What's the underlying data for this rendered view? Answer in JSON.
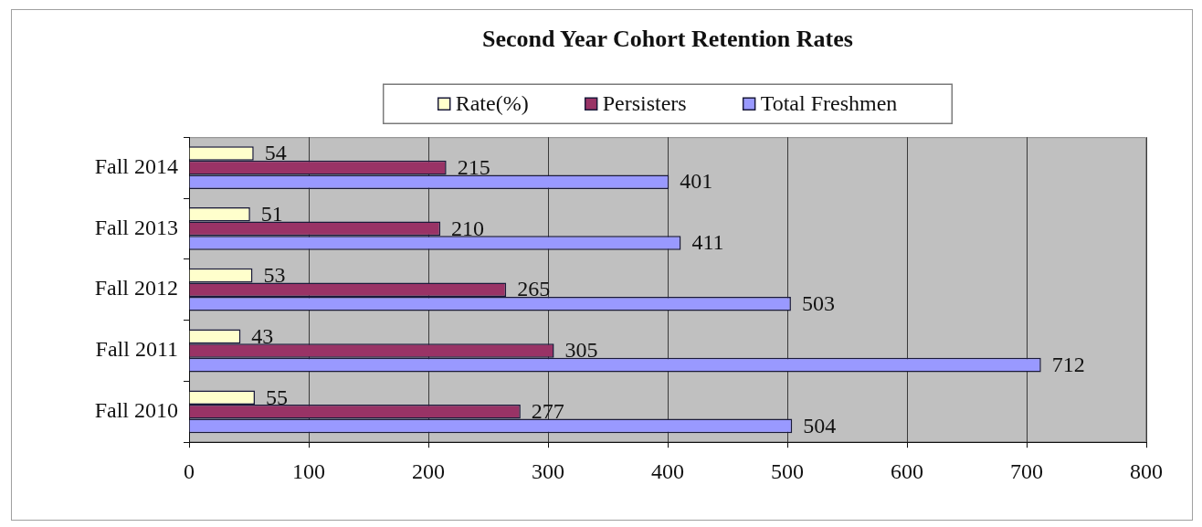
{
  "chart_data": {
    "type": "bar",
    "orientation": "horizontal",
    "title": "Second Year Cohort Retention Rates",
    "categories": [
      "Fall 2014",
      "Fall 2013",
      "Fall 2012",
      "Fall 2011",
      "Fall 2010"
    ],
    "series": [
      {
        "name": "Rate(%)",
        "color": "#ffffcc",
        "values": [
          54,
          51,
          53,
          43,
          55
        ]
      },
      {
        "name": "Persisters",
        "color": "#993366",
        "values": [
          215,
          210,
          265,
          305,
          277
        ]
      },
      {
        "name": "Total Freshmen",
        "color": "#9999ff",
        "values": [
          401,
          411,
          503,
          712,
          504
        ]
      }
    ],
    "xlim": [
      0,
      800
    ],
    "xticks": [
      0,
      100,
      200,
      300,
      400,
      500,
      600,
      700,
      800
    ],
    "grid": "x",
    "legend": "top",
    "data_labels": true
  }
}
